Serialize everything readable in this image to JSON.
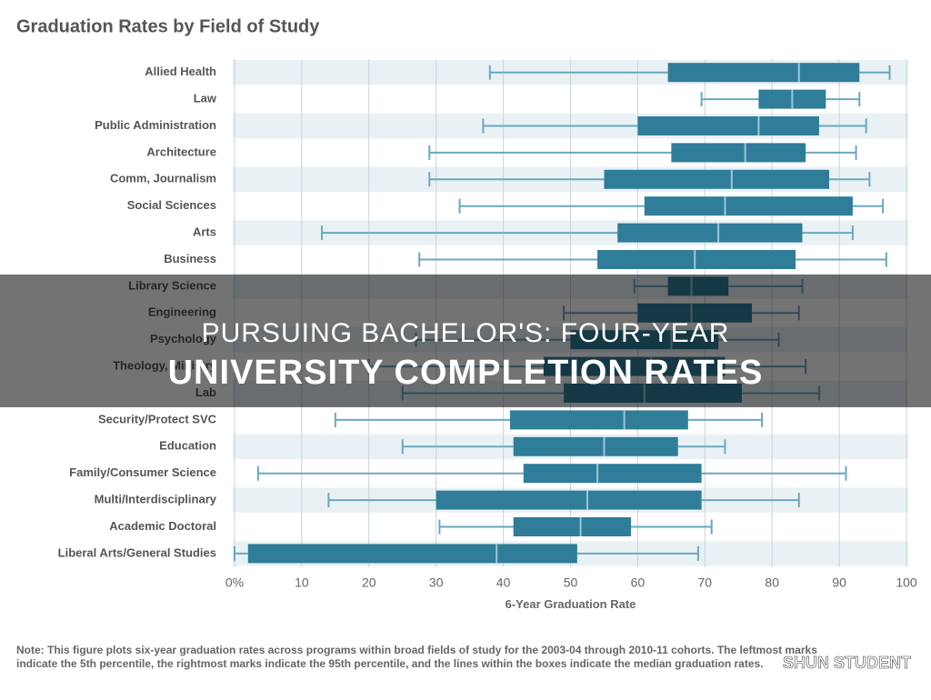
{
  "chart_data": {
    "type": "box",
    "title": "Graduation Rates by Field of Study",
    "categories": [
      "Allied Health",
      "Law",
      "Public Administration",
      "Architecture",
      "Comm, Journalism",
      "Social Sciences",
      "Arts",
      "Business",
      "Library Science",
      "Engineering",
      "Psychology",
      "Theology, Ministry",
      "Lab",
      "Security/Protect SVC",
      "Education",
      "Family/Consumer Science",
      "Multi/Interdisciplinary",
      "Academic Doctoral",
      "Liberal Arts/General Studies"
    ],
    "whisker_low": [
      38,
      69.5,
      37,
      29,
      29,
      33.5,
      13,
      27.5,
      59.5,
      49,
      27,
      20,
      25,
      15,
      25,
      3.5,
      14,
      30.5,
      0
    ],
    "q1": [
      64.5,
      78,
      60,
      65,
      55,
      61,
      57,
      54,
      64.5,
      60,
      50,
      46,
      49,
      41,
      41.5,
      43,
      30,
      41.5,
      2
    ],
    "median": [
      84,
      83,
      78,
      76,
      74,
      73,
      72,
      68.5,
      68,
      68,
      65,
      62,
      61,
      58,
      55,
      54,
      52.5,
      51.5,
      39
    ],
    "q3": [
      93,
      88,
      87,
      85,
      88.5,
      92,
      84.5,
      83.5,
      73.5,
      77,
      72,
      73,
      75.5,
      67.5,
      66,
      69.5,
      69.5,
      59,
      51
    ],
    "whisker_high": [
      97.5,
      93,
      94,
      92.5,
      94.5,
      96.5,
      92,
      97,
      84.5,
      84,
      81,
      85,
      87,
      78.5,
      73,
      91,
      84,
      71,
      69
    ],
    "box_color": "#2f7d99",
    "whisker_color": "#6aa8bf",
    "xlim": [
      0,
      100
    ],
    "xticks": [
      {
        "value": 0,
        "label": "0%"
      },
      10,
      20,
      30,
      40,
      50,
      60,
      70,
      80,
      90,
      100
    ],
    "xlabel": "6-Year Graduation Rate",
    "note": "Note: This figure plots six-year graduation rates across programs within broad fields of study for the 2003-04 through 2010-11 cohorts. The leftmost marks indicate the 5th percentile, the rightmost marks indicate the 95th percentile, and the lines within the boxes indicate the median graduation rates."
  },
  "overlay": {
    "title_lines": [
      "PURSUING BACHELOR'S: FOUR-YEAR",
      "UNIVERSITY COMPLETION RATES"
    ],
    "watermark": "SHUN STUDENT"
  }
}
